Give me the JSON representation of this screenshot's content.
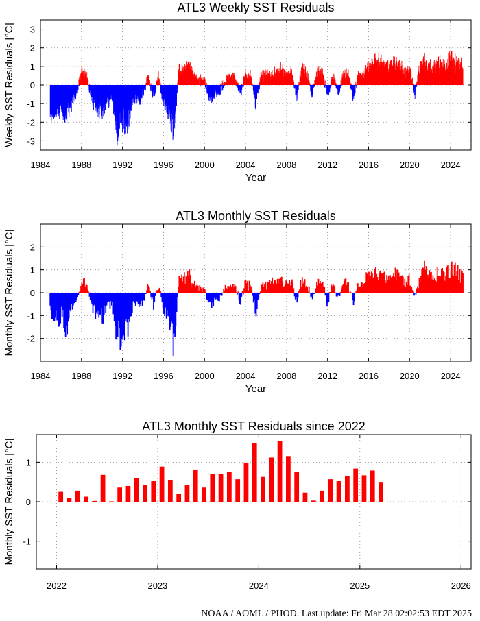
{
  "chart_data": [
    {
      "type": "bar",
      "title": "ATL3 Weekly SST Residuals",
      "xlabel": "Year",
      "ylabel": "Weekly SST Residuals [°C]",
      "xlim": [
        1984,
        2026
      ],
      "ylim": [
        -3.5,
        3.5
      ],
      "x_ticks": [
        1984,
        1988,
        1992,
        1996,
        2000,
        2004,
        2008,
        2012,
        2016,
        2020,
        2024
      ],
      "y_ticks": [
        -3,
        -2,
        -1,
        0,
        1,
        2,
        3
      ],
      "grid": true,
      "positive_color": "#ff0000",
      "negative_color": "#0000ff",
      "resolution": "weekly",
      "series": {
        "x": [
          1985.0,
          1985.5,
          1986.0,
          1986.5,
          1987.0,
          1987.5,
          1988.0,
          1988.5,
          1989.0,
          1989.5,
          1990.0,
          1990.5,
          1991.0,
          1991.5,
          1992.0,
          1992.5,
          1993.0,
          1993.5,
          1994.0,
          1994.5,
          1995.0,
          1995.5,
          1996.0,
          1996.5,
          1997.0,
          1997.5,
          1998.0,
          1998.5,
          1999.0,
          1999.5,
          2000.0,
          2000.5,
          2001.0,
          2001.5,
          2002.0,
          2002.5,
          2003.0,
          2003.5,
          2004.0,
          2004.5,
          2005.0,
          2005.5,
          2006.0,
          2006.5,
          2007.0,
          2007.5,
          2008.0,
          2008.5,
          2009.0,
          2009.5,
          2010.0,
          2010.5,
          2011.0,
          2011.5,
          2012.0,
          2012.5,
          2013.0,
          2013.5,
          2014.0,
          2014.5,
          2015.0,
          2015.5,
          2016.0,
          2016.5,
          2017.0,
          2017.5,
          2018.0,
          2018.5,
          2019.0,
          2019.5,
          2020.0,
          2020.5,
          2021.0,
          2021.5,
          2022.0,
          2022.5,
          2023.0,
          2023.5,
          2024.0,
          2024.5,
          2025.0
        ],
        "values": [
          -1.6,
          -1.4,
          -1.5,
          -1.8,
          -1.0,
          -0.5,
          0.7,
          0.6,
          -0.8,
          -1.2,
          -1.5,
          -0.9,
          -0.6,
          -2.6,
          -2.0,
          -2.2,
          -0.7,
          -0.8,
          -0.6,
          0.5,
          -0.7,
          0.5,
          -1.0,
          -1.4,
          -2.7,
          0.8,
          0.9,
          1.0,
          0.5,
          0.3,
          0.3,
          -0.8,
          -0.5,
          -0.3,
          0.2,
          0.4,
          0.4,
          -0.5,
          0.6,
          0.5,
          -1.2,
          0.5,
          0.5,
          0.6,
          0.6,
          0.8,
          0.5,
          0.7,
          -0.6,
          0.9,
          0.5,
          -0.4,
          0.6,
          0.7,
          -0.6,
          0.6,
          -0.5,
          0.5,
          0.6,
          -0.7,
          0.5,
          0.6,
          1.0,
          1.2,
          1.3,
          1.0,
          0.9,
          1.2,
          1.1,
          0.6,
          0.9,
          -0.5,
          0.9,
          1.5,
          1.0,
          1.0,
          1.2,
          0.9,
          1.5,
          1.3,
          1.0
        ]
      }
    },
    {
      "type": "bar",
      "title": "ATL3 Monthly SST Residuals",
      "xlabel": "Year",
      "ylabel": "Monthly SST Residuals [°C]",
      "xlim": [
        1984,
        2026
      ],
      "ylim": [
        -3,
        3
      ],
      "x_ticks": [
        1984,
        1988,
        1992,
        1996,
        2000,
        2004,
        2008,
        2012,
        2016,
        2020,
        2024
      ],
      "y_ticks": [
        -2,
        -1,
        0,
        1,
        2
      ],
      "grid": true,
      "positive_color": "#ff0000",
      "negative_color": "#0000ff",
      "resolution": "monthly",
      "series": {
        "x": [
          1985.0,
          1985.5,
          1986.0,
          1986.5,
          1987.0,
          1987.5,
          1988.0,
          1988.5,
          1989.0,
          1989.5,
          1990.0,
          1990.5,
          1991.0,
          1991.5,
          1992.0,
          1992.5,
          1993.0,
          1993.5,
          1994.0,
          1994.5,
          1995.0,
          1995.5,
          1996.0,
          1996.5,
          1997.0,
          1997.5,
          1998.0,
          1998.5,
          1999.0,
          1999.5,
          2000.0,
          2000.5,
          2001.0,
          2001.5,
          2002.0,
          2002.5,
          2003.0,
          2003.5,
          2004.0,
          2004.5,
          2005.0,
          2005.5,
          2006.0,
          2006.5,
          2007.0,
          2007.5,
          2008.0,
          2008.5,
          2009.0,
          2009.5,
          2010.0,
          2010.5,
          2011.0,
          2011.5,
          2012.0,
          2012.5,
          2013.0,
          2013.5,
          2014.0,
          2014.5,
          2015.0,
          2015.5,
          2016.0,
          2016.5,
          2017.0,
          2017.5,
          2018.0,
          2018.5,
          2019.0,
          2019.5,
          2020.0,
          2020.5,
          2021.0,
          2021.5,
          2022.0,
          2022.5,
          2023.0,
          2023.5,
          2024.0,
          2024.5,
          2025.0
        ],
        "values": [
          -1.1,
          -1.0,
          -1.2,
          -1.6,
          -0.8,
          -0.4,
          0.5,
          0.5,
          -0.6,
          -1.0,
          -1.3,
          -0.7,
          -0.5,
          -2.2,
          -1.8,
          -1.9,
          -0.6,
          -0.7,
          -0.5,
          0.4,
          -0.6,
          0.4,
          -0.8,
          -1.2,
          -2.4,
          0.6,
          0.7,
          0.8,
          0.4,
          0.2,
          0.2,
          -0.6,
          -0.4,
          -0.2,
          0.2,
          0.3,
          0.3,
          -0.4,
          0.5,
          0.4,
          -1.1,
          0.4,
          0.4,
          0.5,
          0.5,
          0.6,
          0.4,
          0.6,
          -0.5,
          0.7,
          0.4,
          -0.3,
          0.5,
          0.5,
          -0.5,
          0.5,
          -0.4,
          0.4,
          0.5,
          -0.6,
          0.4,
          0.5,
          0.8,
          0.9,
          1.0,
          0.8,
          0.7,
          0.9,
          0.9,
          0.5,
          0.7,
          -0.4,
          0.8,
          1.3,
          0.8,
          0.8,
          1.0,
          0.8,
          1.4,
          1.2,
          0.8
        ]
      }
    },
    {
      "type": "bar",
      "title": "ATL3 Monthly SST Residuals since 2022",
      "xlabel": "",
      "ylabel": "Monthly SST Residuals [°C]",
      "xlim": [
        2021.8,
        2026.1
      ],
      "ylim": [
        -1.7,
        1.7
      ],
      "x_ticks": [
        2022,
        2023,
        2024,
        2025,
        2026
      ],
      "y_ticks": [
        -1,
        0,
        1
      ],
      "grid": true,
      "positive_color": "#ff0000",
      "series": {
        "x": [
          2022.0417,
          2022.125,
          2022.2083,
          2022.2917,
          2022.375,
          2022.4583,
          2022.5417,
          2022.625,
          2022.7083,
          2022.7917,
          2022.875,
          2022.9583,
          2023.0417,
          2023.125,
          2023.2083,
          2023.2917,
          2023.375,
          2023.4583,
          2023.5417,
          2023.625,
          2023.7083,
          2023.7917,
          2023.875,
          2023.9583,
          2024.0417,
          2024.125,
          2024.2083,
          2024.2917,
          2024.375,
          2024.4583,
          2024.5417,
          2024.625,
          2024.7083,
          2024.7917,
          2024.875,
          2024.9583,
          2025.0417,
          2025.125,
          2025.2083
        ],
        "values": [
          0.25,
          0.1,
          0.28,
          0.13,
          0.02,
          0.68,
          0.01,
          0.36,
          0.4,
          0.59,
          0.43,
          0.52,
          0.89,
          0.54,
          0.2,
          0.42,
          0.8,
          0.36,
          0.71,
          0.7,
          0.75,
          0.57,
          0.99,
          1.49,
          0.63,
          1.12,
          1.54,
          1.14,
          0.76,
          0.23,
          0.03,
          0.28,
          0.57,
          0.52,
          0.66,
          0.84,
          0.67,
          0.79,
          0.5
        ]
      }
    }
  ],
  "footer": "NOAA / AOML / PHOD.   Last update: Fri Mar 28 02:02:53 EDT 2025"
}
